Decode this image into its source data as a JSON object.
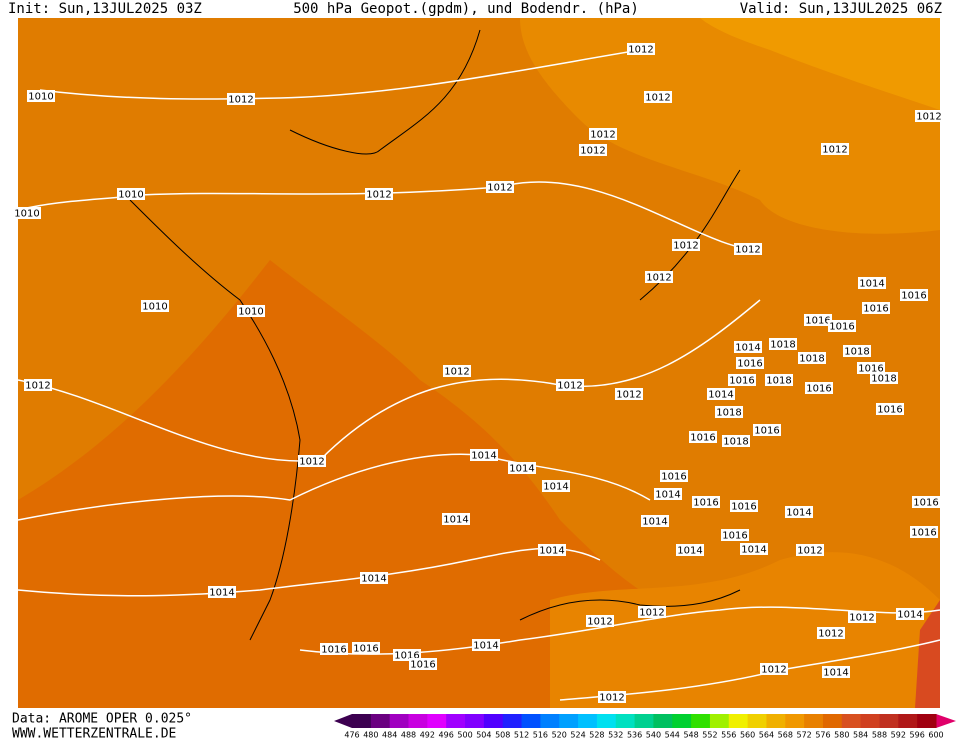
{
  "header": {
    "init": "Init: Sun,13JUL2025 03Z",
    "title": "500 hPa Geopot.(gpdm), und Bodendr. (hPa)",
    "valid": "Valid: Sun,13JUL2025 06Z"
  },
  "footer": {
    "data_source": "Data: AROME OPER 0.025°",
    "website": "WWW.WETTERZENTRALE.DE"
  },
  "isobar_labels": [
    "1012",
    "1010",
    "1012",
    "1012",
    "1012",
    "1012",
    "1012",
    "1012",
    "1010",
    "1012",
    "1012",
    "1010",
    "1012",
    "1012",
    "1012",
    "1014",
    "1016",
    "1010",
    "1010",
    "1016",
    "1016",
    "1016",
    "1014",
    "1018",
    "1018",
    "1016",
    "1018",
    "1016",
    "1012",
    "1012",
    "1012",
    "1012",
    "1016",
    "1018",
    "1016",
    "1018",
    "1014",
    "1016",
    "1018",
    "1016",
    "1018",
    "1016",
    "1012",
    "1014",
    "1014",
    "1014",
    "1016",
    "1014",
    "1016",
    "1016",
    "1016",
    "1014",
    "1014",
    "1014",
    "1016",
    "1016",
    "1014",
    "1014",
    "1014",
    "1012",
    "1014",
    "1014",
    "1012",
    "1012",
    "1012",
    "1014",
    "1012",
    "1016",
    "1016",
    "1016",
    "1014",
    "1016",
    "1012",
    "1014",
    "1012"
  ],
  "legend": {
    "ticks": [
      476,
      480,
      484,
      488,
      492,
      496,
      500,
      504,
      508,
      512,
      516,
      520,
      524,
      528,
      532,
      536,
      540,
      544,
      548,
      552,
      556,
      560,
      564,
      568,
      572,
      576,
      580,
      584,
      588,
      592,
      596,
      600
    ],
    "colors": [
      "#3c0050",
      "#6a0080",
      "#a000c0",
      "#c800e0",
      "#e000ff",
      "#a000ff",
      "#8000ff",
      "#5000ff",
      "#2020ff",
      "#0050ff",
      "#0080ff",
      "#00a0ff",
      "#00c0ff",
      "#00e0f0",
      "#00e0c0",
      "#00d090",
      "#00c060",
      "#00d030",
      "#30e000",
      "#a0f000",
      "#f0f000",
      "#f0d000",
      "#f0b000",
      "#f09800",
      "#e88000",
      "#e06800",
      "#d85020",
      "#d04020",
      "#c03020",
      "#b01818",
      "#a00010"
    ]
  }
}
